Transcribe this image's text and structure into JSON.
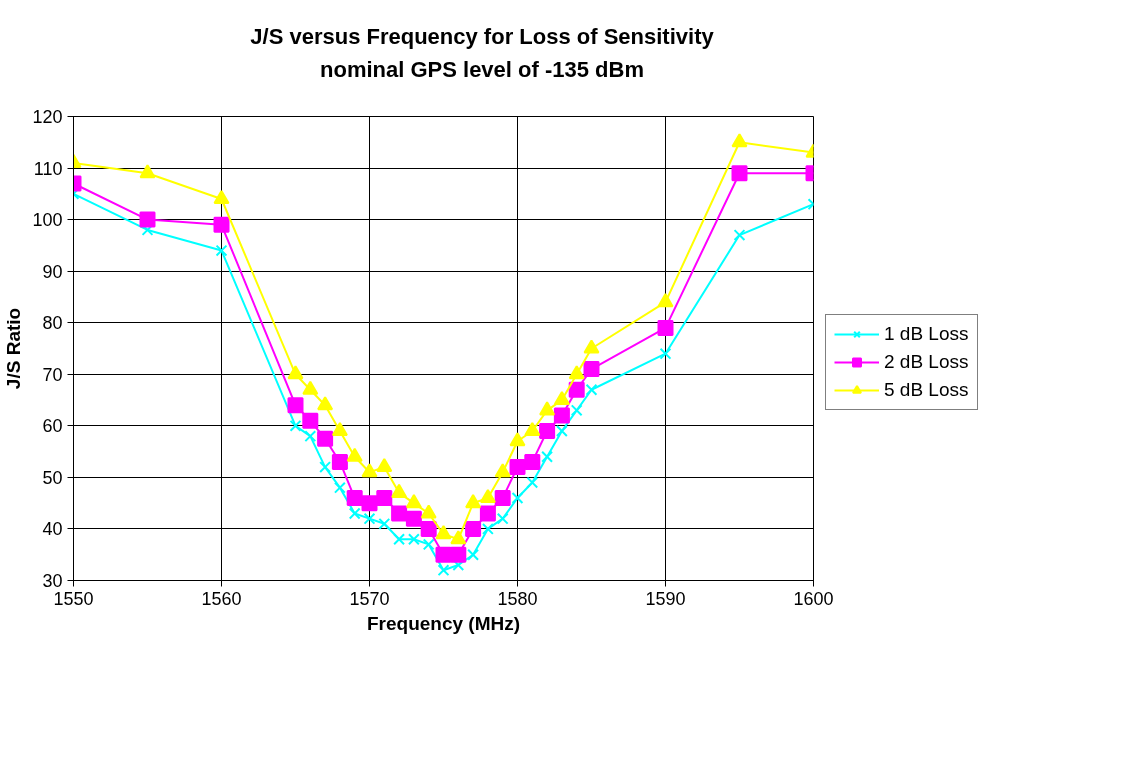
{
  "chart_data": {
    "type": "line",
    "title": "J/S versus Frequency for Loss of Sensitivity\nnominal GPS level of -135 dBm",
    "xlabel": "Frequency (MHz)",
    "ylabel": "J/S Ratio",
    "x": [
      1550,
      1555,
      1560,
      1565,
      1566,
      1567,
      1568,
      1569,
      1570,
      1571,
      1572,
      1573,
      1574,
      1575,
      1576,
      1577,
      1578,
      1579,
      1580,
      1581,
      1582,
      1583,
      1584,
      1585,
      1590,
      1595,
      1600
    ],
    "series": [
      {
        "name": "1 dB Loss",
        "color": "#00ffff",
        "marker": "cross",
        "values": [
          105,
          98,
          94,
          60,
          58,
          52,
          48,
          43,
          42,
          41,
          38,
          38,
          37,
          32,
          33,
          35,
          40,
          42,
          46,
          49,
          54,
          59,
          63,
          67,
          74,
          97,
          103
        ]
      },
      {
        "name": "2 dB Loss",
        "color": "#ff00ff",
        "marker": "square",
        "values": [
          107,
          100,
          99,
          64,
          61,
          57.5,
          53,
          46,
          45,
          46,
          43,
          42,
          40,
          35,
          35,
          40,
          43,
          46,
          52,
          53,
          59,
          62,
          67,
          71,
          79,
          109,
          109
        ]
      },
      {
        "name": "5 dB Loss",
        "color": "#ffff00",
        "marker": "triangle",
        "values": [
          111,
          109,
          104,
          70,
          67,
          64,
          59,
          54,
          51,
          52,
          47,
          45,
          43,
          39,
          38,
          45,
          46,
          51,
          57,
          59,
          63,
          65,
          70,
          75,
          84,
          115,
          113
        ]
      }
    ],
    "xlim": [
      1550,
      1600
    ],
    "xticks": [
      1550,
      1560,
      1570,
      1580,
      1590,
      1600
    ],
    "ylim": [
      30,
      120
    ],
    "yticks": [
      30,
      40,
      50,
      60,
      70,
      80,
      90,
      100,
      110,
      120
    ],
    "grid": true,
    "legend": "right"
  }
}
